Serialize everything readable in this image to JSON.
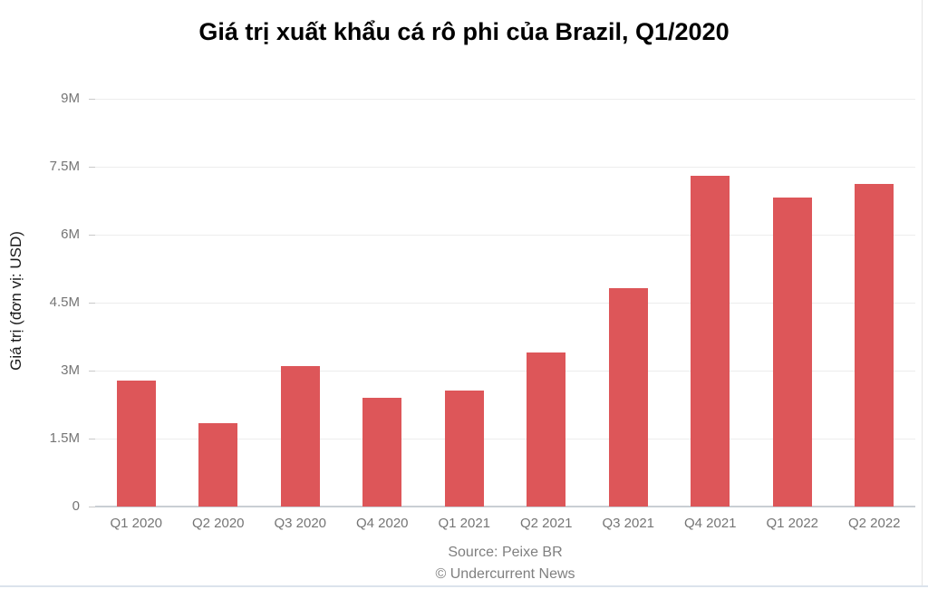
{
  "title": "Giá trị xuất khẩu cá rô phi của Brazil, Q1/2020",
  "chart_data": {
    "type": "bar",
    "title": "Giá trị xuất khẩu cá rô phi của Brazil, Q1/2020",
    "categories": [
      "Q1 2020",
      "Q2 2020",
      "Q3 2020",
      "Q4 2020",
      "Q1 2021",
      "Q2 2021",
      "Q3 2021",
      "Q4 2021",
      "Q1 2022",
      "Q2 2022"
    ],
    "values": [
      2.78,
      1.83,
      3.1,
      2.4,
      2.56,
      3.39,
      4.82,
      7.3,
      6.82,
      7.12
    ],
    "values_unit": "million USD",
    "xlabel": "",
    "ylabel": "Giá trị (đơn vị: USD)",
    "ylim": [
      0,
      9
    ],
    "yticks": [
      {
        "value": 0,
        "label": "0"
      },
      {
        "value": 1.5,
        "label": "1.5M"
      },
      {
        "value": 3,
        "label": "3M"
      },
      {
        "value": 4.5,
        "label": "4.5M"
      },
      {
        "value": 6,
        "label": "6M"
      },
      {
        "value": 7.5,
        "label": "7.5M"
      },
      {
        "value": 9,
        "label": "9M"
      }
    ],
    "grid": "horizontal",
    "legend": "none",
    "bar_color": "#dd5659"
  },
  "footer": {
    "source": "Source: Peixe BR",
    "copyright": "© Undercurrent News"
  },
  "colors": {
    "bar": "#dd5659",
    "gridline": "#ededed",
    "axis_line": "#c9ced4",
    "tick_text": "#757575",
    "title_text": "#000000",
    "footer_text": "#7f7f7f",
    "background": "#ffffff"
  }
}
